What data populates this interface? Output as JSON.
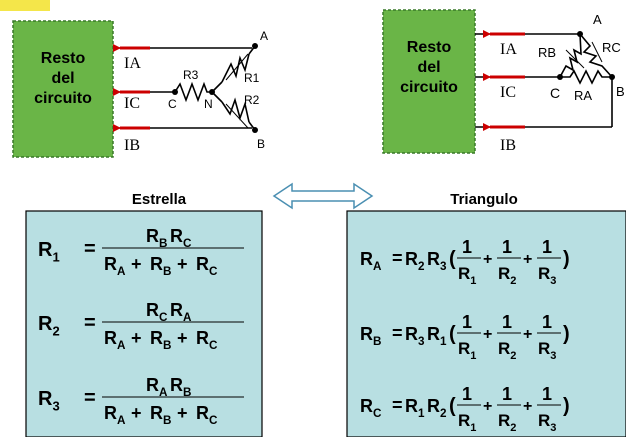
{
  "colors": {
    "block_green": "#6ab547",
    "block_dash": "#3a7a2a",
    "panel_fill": "#b8dfe2",
    "accent_yellow": "#f4e64a",
    "current_arrow": "#cc0000",
    "wire": "#000000"
  },
  "left_circuit": {
    "block_label_lines": [
      "Resto",
      "del",
      "circuito"
    ],
    "current_labels": [
      "IA",
      "IC",
      "IB"
    ],
    "node_labels": {
      "a": "A",
      "b": "B",
      "c": "C",
      "n": "N"
    },
    "resistor_labels": {
      "r1": "R1",
      "r2": "R2",
      "r3": "R3"
    }
  },
  "right_circuit": {
    "block_label_lines": [
      "Resto",
      "del",
      "circuito"
    ],
    "current_labels": [
      "IA",
      "IC",
      "IB"
    ],
    "node_labels": {
      "a": "A",
      "b": "B",
      "c": "C"
    },
    "resistor_labels": {
      "ra": "RA",
      "rb": "RB",
      "rc": "RC"
    }
  },
  "headings": {
    "star": "Estrella",
    "delta": "Triangulo"
  },
  "arrow_icon": "double-arrow-icon",
  "star_formulas": [
    {
      "lhs": "R",
      "lhs_sub": "1",
      "num": [
        [
          "R",
          "B"
        ],
        [
          "R",
          "C"
        ]
      ],
      "den": [
        [
          "R",
          "A"
        ],
        [
          "R",
          "B"
        ],
        [
          "R",
          "C"
        ]
      ]
    },
    {
      "lhs": "R",
      "lhs_sub": "2",
      "num": [
        [
          "R",
          "C"
        ],
        [
          "R",
          "A"
        ]
      ],
      "den": [
        [
          "R",
          "A"
        ],
        [
          "R",
          "B"
        ],
        [
          "R",
          "C"
        ]
      ]
    },
    {
      "lhs": "R",
      "lhs_sub": "3",
      "num": [
        [
          "R",
          "A"
        ],
        [
          "R",
          "B"
        ]
      ],
      "den": [
        [
          "R",
          "A"
        ],
        [
          "R",
          "B"
        ],
        [
          "R",
          "C"
        ]
      ]
    }
  ],
  "delta_formulas": [
    {
      "lhs": "R",
      "lhs_sub": "A",
      "prod": [
        [
          "R",
          "2"
        ],
        [
          "R",
          "3"
        ]
      ],
      "terms": [
        [
          "R",
          "1"
        ],
        [
          "R",
          "2"
        ],
        [
          "R",
          "3"
        ]
      ]
    },
    {
      "lhs": "R",
      "lhs_sub": "B",
      "prod": [
        [
          "R",
          "3"
        ],
        [
          "R",
          "1"
        ]
      ],
      "terms": [
        [
          "R",
          "1"
        ],
        [
          "R",
          "2"
        ],
        [
          "R",
          "3"
        ]
      ]
    },
    {
      "lhs": "R",
      "lhs_sub": "C",
      "prod": [
        [
          "R",
          "1"
        ],
        [
          "R",
          "2"
        ]
      ],
      "terms": [
        [
          "R",
          "1"
        ],
        [
          "R",
          "2"
        ],
        [
          "R",
          "3"
        ]
      ]
    }
  ]
}
